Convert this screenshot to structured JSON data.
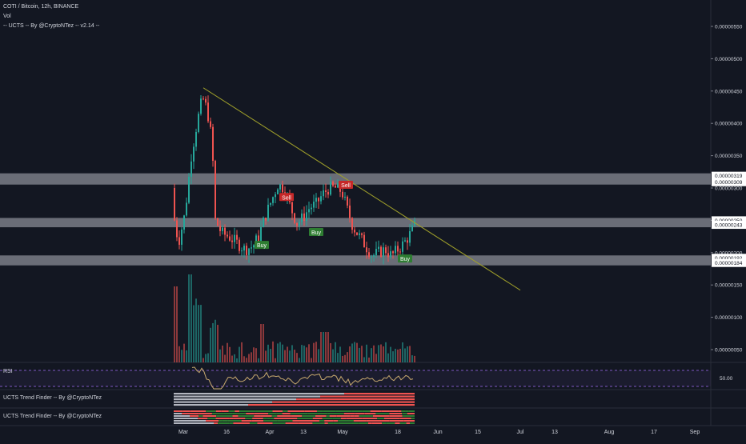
{
  "symbol": {
    "title": "COTI / Bitcoin, 12h, BINANCE",
    "vol_label": "Vol",
    "indicator_label": "-- UCTS -- By @CryptoNTez -- v2.14 --"
  },
  "panes": {
    "rsi_label": "RSI",
    "rsi_level_label": "50.00",
    "trend1_label": "UCTS Trend Finder -- By @CryptoNTez",
    "trend2_label": "UCTS Trend Finder -- By @CryptoNTez"
  },
  "colors": {
    "background": "#131722",
    "up": "#26a69a",
    "down": "#ef5350",
    "zone": "#b2b5be",
    "trendline": "#a0a02a",
    "rsi": "#c8a96e",
    "rsi_band": "#7e57c2",
    "buy": "#2e7d32",
    "sell": "#c62828",
    "axis_text": "#d1d4dc"
  },
  "chart_data": {
    "type": "candlestick",
    "y_axis": {
      "ticks": [
        "0.00000550",
        "0.00000500",
        "0.00000450",
        "0.00000400",
        "0.00000350",
        "0.00000300",
        "0.00000250",
        "0.00000200",
        "0.00000150",
        "0.00000100",
        "0.00000050"
      ],
      "highlighted": [
        "0.00000319",
        "0.00000309",
        "0.00000250",
        "0.00000243",
        "0.00000192",
        "0.00000184"
      ]
    },
    "x_axis": {
      "ticks": [
        "Mar",
        "16",
        "Apr",
        "13",
        "May",
        "18",
        "Jun",
        "15",
        "Jul",
        "13",
        "Aug",
        "17",
        "Sep"
      ]
    },
    "zones": [
      {
        "from": 3.09e-06,
        "to": 3.19e-06
      },
      {
        "from": 2.43e-06,
        "to": 2.5e-06
      },
      {
        "from": 1.84e-06,
        "to": 1.92e-06
      }
    ],
    "signals": [
      {
        "label": "Sell",
        "price": 2.86e-06
      },
      {
        "label": "Sell",
        "price": 3.05e-06
      },
      {
        "label": "Buy",
        "price": 2.12e-06
      },
      {
        "label": "Buy",
        "price": 2.32e-06
      },
      {
        "label": "Buy",
        "price": 1.91e-06
      }
    ]
  }
}
